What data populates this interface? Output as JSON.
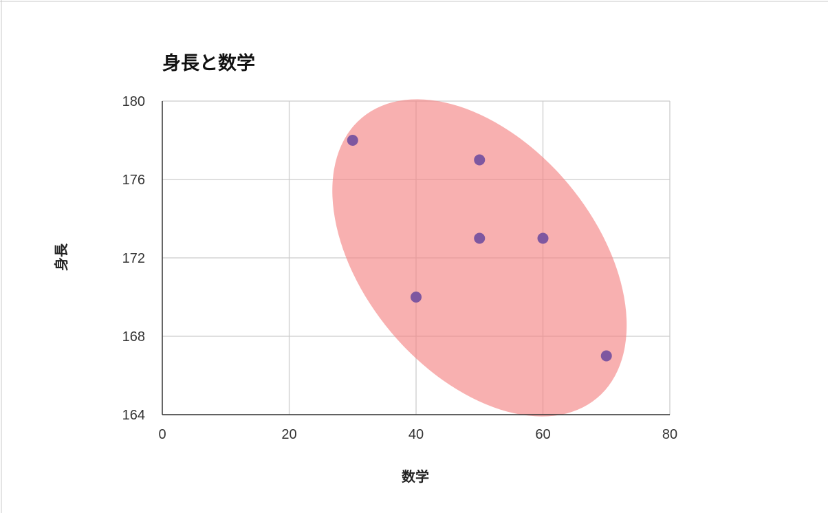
{
  "chart_data": {
    "type": "scatter",
    "title": "身長と数学",
    "xlabel": "数学",
    "ylabel": "身長",
    "xlim": [
      0,
      80
    ],
    "ylim": [
      164,
      180
    ],
    "xticks": [
      "0",
      "20",
      "40",
      "60",
      "80"
    ],
    "yticks": [
      "164",
      "168",
      "172",
      "176",
      "180"
    ],
    "grid": true,
    "series": [
      {
        "points": [
          {
            "x": 30,
            "y": 178
          },
          {
            "x": 50,
            "y": 177
          },
          {
            "x": 50,
            "y": 173
          },
          {
            "x": 60,
            "y": 173
          },
          {
            "x": 40,
            "y": 170
          },
          {
            "x": 70,
            "y": 167
          }
        ],
        "color": "#7e57a0"
      }
    ],
    "annotation": {
      "shape": "ellipse",
      "center": {
        "x": 50,
        "y": 172
      },
      "color": "#f47f7f"
    }
  }
}
